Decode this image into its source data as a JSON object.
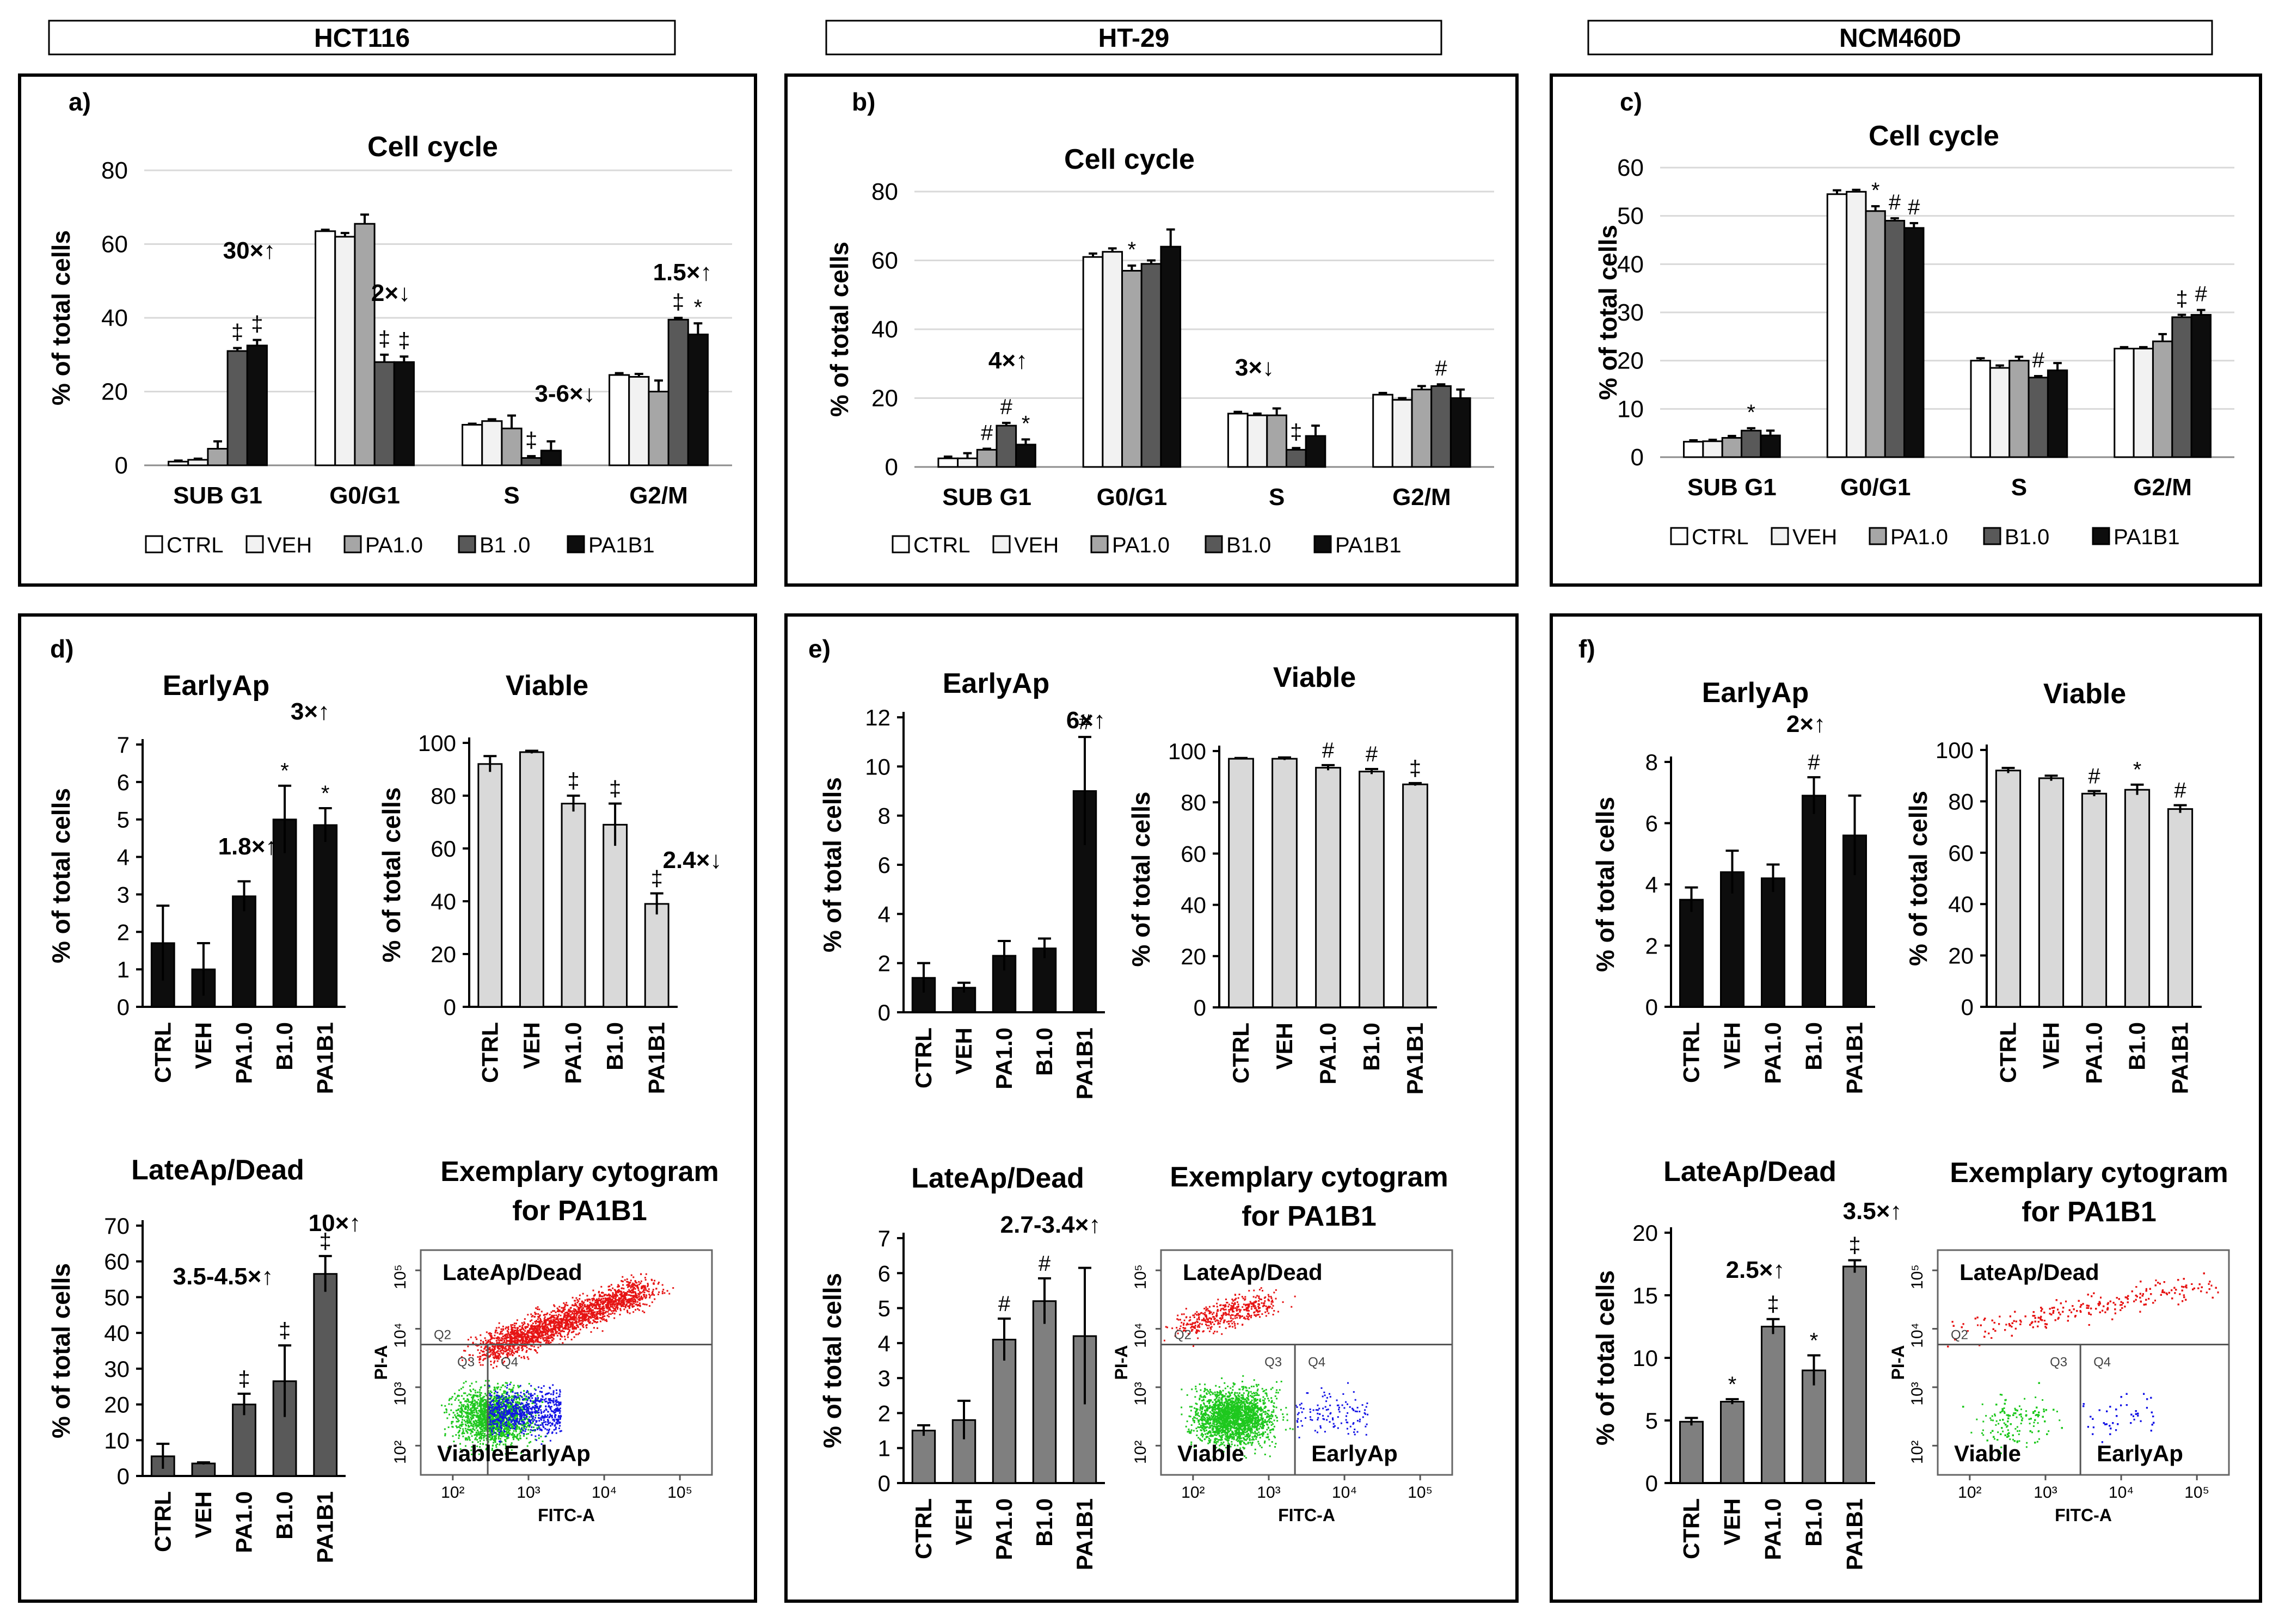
{
  "columns": [
    "HCT116",
    "HT-29",
    "NCM460D"
  ],
  "common": {
    "ylabel": "% of total cells",
    "cyto_title": [
      "Exemplary cytogram",
      "for PA1B1"
    ],
    "cyto_q_late": "LateAp/Dead",
    "cyto_q_viable": "Viable",
    "cyto_q_early": "EarlyAp",
    "cyto_xlabel": "FITC-A",
    "cyto_ylabel": "PI-A",
    "cyto_gates": [
      "Q2",
      "Q3",
      "Q4"
    ],
    "cyto_ticks_x": [
      "10²",
      "10³",
      "10⁴",
      "10⁵"
    ],
    "cyto_ticks_y": [
      "10²",
      "10³",
      "10⁴",
      "10⁵"
    ],
    "apop_categories": [
      "CTRL",
      "VEH",
      "PA1.0",
      "B1.0",
      "PA1B1"
    ]
  },
  "chart_data": [
    {
      "panel": "a)",
      "type": "bar",
      "title": "Cell cycle",
      "ylabel": "% of total cells",
      "ylim": [
        0,
        80
      ],
      "yticks": [
        0,
        20,
        40,
        60,
        80
      ],
      "categories": [
        "SUB G1",
        "G0/G1",
        "S",
        "G2/M"
      ],
      "legend": [
        "CTRL",
        "VEH",
        "PA1.0",
        "B1 .0",
        "PA1B1"
      ],
      "series": [
        {
          "name": "CTRL",
          "values": [
            1,
            63.5,
            11,
            24.5
          ],
          "errors": [
            0.3,
            0.4,
            0.3,
            0.5
          ]
        },
        {
          "name": "VEH",
          "values": [
            1.5,
            62,
            12,
            24
          ],
          "errors": [
            0.3,
            1,
            0.5,
            0.8
          ]
        },
        {
          "name": "PA1.0",
          "values": [
            4.5,
            65.5,
            10,
            20
          ],
          "errors": [
            2,
            2.5,
            3.5,
            3
          ]
        },
        {
          "name": "B1 .0",
          "values": [
            31,
            28,
            2,
            39.5
          ],
          "errors": [
            0.8,
            2,
            0.5,
            0.5
          ]
        },
        {
          "name": "PA1B1",
          "values": [
            32.5,
            28,
            4,
            35.5
          ],
          "errors": [
            1.5,
            1.5,
            2.5,
            3
          ]
        }
      ],
      "marks": [
        [
          "",
          "",
          "",
          "‡",
          "‡"
        ],
        [
          "",
          "",
          "",
          "‡",
          "‡"
        ],
        [
          "",
          "",
          "",
          "‡",
          ""
        ],
        [
          "",
          "",
          "",
          "‡",
          "*"
        ]
      ],
      "annotations": [
        {
          "text": "30×↑",
          "cat": 0
        },
        {
          "text": "2×↓",
          "cat": 1
        },
        {
          "text": "3-6×↓",
          "cat": 2
        },
        {
          "text": "1.5×↑",
          "cat": 3
        }
      ]
    },
    {
      "panel": "b)",
      "type": "bar",
      "title": "Cell cycle",
      "ylabel": "% of total cells",
      "ylim": [
        0,
        80
      ],
      "yticks": [
        0,
        20,
        40,
        60,
        80
      ],
      "categories": [
        "SUB G1",
        "G0/G1",
        "S",
        "G2/M"
      ],
      "legend": [
        "CTRL",
        "VEH",
        "PA1.0",
        "B1.0",
        "PA1B1"
      ],
      "series": [
        {
          "name": "CTRL",
          "values": [
            2.5,
            61,
            15.5,
            21
          ],
          "errors": [
            0.5,
            1,
            0.5,
            0.5
          ]
        },
        {
          "name": "VEH",
          "values": [
            2.5,
            62.5,
            15,
            19.5
          ],
          "errors": [
            1.5,
            1,
            0.5,
            0.5
          ]
        },
        {
          "name": "PA1.0",
          "values": [
            5,
            57,
            15,
            22.5
          ],
          "errors": [
            0.3,
            1.5,
            2,
            1
          ]
        },
        {
          "name": "B1.0",
          "values": [
            12,
            59,
            5,
            23.5
          ],
          "errors": [
            0.8,
            1,
            0.5,
            0.5
          ]
        },
        {
          "name": "PA1B1",
          "values": [
            6.5,
            64,
            9,
            20
          ],
          "errors": [
            1.5,
            5,
            3,
            2.5
          ]
        }
      ],
      "marks": [
        [
          "",
          "",
          "#",
          "#",
          "*"
        ],
        [
          "",
          "",
          "*",
          "",
          ""
        ],
        [
          "",
          "",
          "",
          "‡",
          ""
        ],
        [
          "",
          "",
          "",
          "#",
          ""
        ]
      ],
      "annotations": [
        {
          "text": "4×↑",
          "cat": 0
        },
        {
          "text": "3×↓",
          "cat": 2
        }
      ]
    },
    {
      "panel": "c)",
      "type": "bar",
      "title": "Cell cycle",
      "ylabel": "% of total cells",
      "ylim": [
        0,
        60
      ],
      "yticks": [
        0,
        10,
        20,
        30,
        40,
        50,
        60
      ],
      "categories": [
        "SUB G1",
        "G0/G1",
        "S",
        "G2/M"
      ],
      "legend": [
        "CTRL",
        "VEH",
        "PA1.0",
        "B1.0",
        "PA1B1"
      ],
      "series": [
        {
          "name": "CTRL",
          "values": [
            3.2,
            54.5,
            20,
            22.5
          ],
          "errors": [
            0.3,
            0.8,
            0.5,
            0.3
          ]
        },
        {
          "name": "VEH",
          "values": [
            3.3,
            55,
            18.5,
            22.5
          ],
          "errors": [
            0.3,
            0.4,
            0.5,
            0.3
          ]
        },
        {
          "name": "PA1.0",
          "values": [
            4,
            51,
            20,
            24
          ],
          "errors": [
            0.4,
            1,
            0.8,
            1.5
          ]
        },
        {
          "name": "B1.0",
          "values": [
            5.5,
            49,
            16.5,
            29
          ],
          "errors": [
            0.5,
            0.5,
            0.3,
            0.5
          ]
        },
        {
          "name": "PA1B1",
          "values": [
            4.5,
            47.5,
            18,
            29.5
          ],
          "errors": [
            1,
            1,
            1.5,
            1
          ]
        }
      ],
      "marks": [
        [
          "",
          "",
          "",
          "*",
          ""
        ],
        [
          "",
          "",
          "*",
          "#",
          "#"
        ],
        [
          "",
          "",
          "",
          "#",
          ""
        ],
        [
          "",
          "",
          "",
          "‡",
          "#"
        ]
      ],
      "annotations": []
    },
    {
      "panel": "d)",
      "type": "bar",
      "title": "EarlyAp",
      "ylabel": "% of total cells",
      "ylim": [
        0,
        7
      ],
      "yticks": [
        0,
        1,
        2,
        3,
        4,
        5,
        6,
        7
      ],
      "categories": [
        "CTRL",
        "VEH",
        "PA1.0",
        "B1.0",
        "PA1B1"
      ],
      "values": [
        1.7,
        1,
        2.95,
        5,
        4.85
      ],
      "errors": [
        1,
        0.7,
        0.4,
        0.9,
        0.45
      ],
      "marks": [
        "",
        "",
        "",
        "*",
        "*"
      ],
      "annotations": [
        {
          "text": "1.8×↑",
          "bar": 2
        },
        {
          "text": "3×↑",
          "bar": 4
        }
      ]
    },
    {
      "panel": "",
      "type": "bar",
      "title": "Viable",
      "ylabel": "% of total cells",
      "ylim": [
        0,
        100
      ],
      "yticks": [
        0,
        20,
        40,
        60,
        80,
        100
      ],
      "categories": [
        "CTRL",
        "VEH",
        "PA1.0",
        "B1.0",
        "PA1B1"
      ],
      "values": [
        92,
        96.5,
        77,
        69,
        39
      ],
      "errors": [
        3,
        0.5,
        3,
        8,
        4
      ],
      "marks": [
        "",
        "",
        "‡",
        "‡",
        "‡"
      ],
      "annotations": [
        {
          "text": "2.4×↓",
          "bar": 4
        }
      ]
    },
    {
      "panel": "",
      "type": "bar",
      "title": "LateAp/Dead",
      "ylabel": "% of total cells",
      "ylim": [
        0,
        70
      ],
      "yticks": [
        0,
        10,
        20,
        30,
        40,
        50,
        60,
        70
      ],
      "categories": [
        "CTRL",
        "VEH",
        "PA1.0",
        "B1.0",
        "PA1B1"
      ],
      "values": [
        5.5,
        3.5,
        20,
        26.5,
        56.5
      ],
      "errors": [
        3.5,
        0.3,
        3,
        10,
        5
      ],
      "marks": [
        "",
        "",
        "‡",
        "‡",
        "‡"
      ],
      "annotations": [
        {
          "text": "3.5-4.5×↑",
          "bar": 2
        },
        {
          "text": "10×↑",
          "bar": 4
        }
      ]
    },
    {
      "panel": "e)",
      "type": "bar",
      "title": "EarlyAp",
      "ylabel": "% of total cells",
      "ylim": [
        0,
        12
      ],
      "yticks": [
        0,
        2,
        4,
        6,
        8,
        10,
        12
      ],
      "categories": [
        "CTRL",
        "VEH",
        "PA1.0",
        "B1.0",
        "PA1B1"
      ],
      "values": [
        1.4,
        1,
        2.3,
        2.6,
        9
      ],
      "errors": [
        0.6,
        0.2,
        0.6,
        0.4,
        2.2
      ],
      "marks": [
        "",
        "",
        "",
        "",
        "#"
      ],
      "annotations": [
        {
          "text": "6×↑",
          "bar": 4
        }
      ]
    },
    {
      "panel": "",
      "type": "bar",
      "title": "Viable",
      "ylabel": "% of total cells",
      "ylim": [
        0,
        100
      ],
      "yticks": [
        0,
        20,
        40,
        60,
        80,
        100
      ],
      "categories": [
        "CTRL",
        "VEH",
        "PA1.0",
        "B1.0",
        "PA1B1"
      ],
      "values": [
        97,
        97,
        93.5,
        92,
        87
      ],
      "errors": [
        0.3,
        0.5,
        1,
        1,
        0.5
      ],
      "marks": [
        "",
        "",
        "#",
        "#",
        "‡"
      ],
      "annotations": []
    },
    {
      "panel": "",
      "type": "bar",
      "title": "LateAp/Dead",
      "ylabel": "% of total cells",
      "ylim": [
        0,
        7
      ],
      "yticks": [
        0,
        1,
        2,
        3,
        4,
        5,
        6,
        7
      ],
      "categories": [
        "CTRL",
        "VEH",
        "PA1.0",
        "B1.0",
        "PA1B1"
      ],
      "values": [
        1.5,
        1.8,
        4.1,
        5.2,
        4.2
      ],
      "errors": [
        0.15,
        0.55,
        0.6,
        0.65,
        1.95
      ],
      "marks": [
        "",
        "",
        "#",
        "#",
        ""
      ],
      "annotations": [
        {
          "text": "2.7-3.4×↑",
          "bar": 3
        }
      ]
    },
    {
      "panel": "f)",
      "type": "bar",
      "title": "EarlyAp",
      "ylabel": "% of total cells",
      "ylim": [
        0,
        8
      ],
      "yticks": [
        0,
        2,
        4,
        6,
        8
      ],
      "categories": [
        "CTRL",
        "VEH",
        "PA1.0",
        "B1.0",
        "PA1B1"
      ],
      "values": [
        3.5,
        4.4,
        4.2,
        6.9,
        5.6
      ],
      "errors": [
        0.4,
        0.7,
        0.45,
        0.6,
        1.3
      ],
      "marks": [
        "",
        "",
        "",
        "#",
        ""
      ],
      "annotations": [
        {
          "text": "2×↑",
          "bar": 3
        }
      ]
    },
    {
      "panel": "",
      "type": "bar",
      "title": "Viable",
      "ylabel": "% of total cells",
      "ylim": [
        0,
        100
      ],
      "yticks": [
        0,
        20,
        40,
        60,
        80,
        100
      ],
      "categories": [
        "CTRL",
        "VEH",
        "PA1.0",
        "B1.0",
        "PA1B1"
      ],
      "values": [
        92,
        89,
        83,
        84.5,
        77
      ],
      "errors": [
        1,
        1,
        1,
        2,
        1.5
      ],
      "marks": [
        "",
        "",
        "#",
        "*",
        "#"
      ],
      "annotations": []
    },
    {
      "panel": "",
      "type": "bar",
      "title": "LateAp/Dead",
      "ylabel": "% of total cells",
      "ylim": [
        0,
        20
      ],
      "yticks": [
        0,
        5,
        10,
        15,
        20
      ],
      "categories": [
        "CTRL",
        "VEH",
        "PA1.0",
        "B1.0",
        "PA1B1"
      ],
      "values": [
        4.9,
        6.5,
        12.5,
        9,
        17.3
      ],
      "errors": [
        0.3,
        0.2,
        0.6,
        1.2,
        0.5
      ],
      "marks": [
        "",
        "*",
        "‡",
        "*",
        "‡"
      ],
      "annotations": [
        {
          "text": "2.5×↑",
          "bar": 2
        },
        {
          "text": "3.5×↑",
          "bar": 4
        }
      ]
    }
  ]
}
